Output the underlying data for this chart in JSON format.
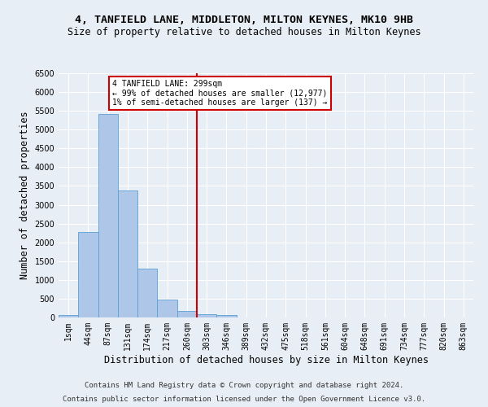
{
  "title": "4, TANFIELD LANE, MIDDLETON, MILTON KEYNES, MK10 9HB",
  "subtitle": "Size of property relative to detached houses in Milton Keynes",
  "xlabel": "Distribution of detached houses by size in Milton Keynes",
  "ylabel": "Number of detached properties",
  "footer_line1": "Contains HM Land Registry data © Crown copyright and database right 2024.",
  "footer_line2": "Contains public sector information licensed under the Open Government Licence v3.0.",
  "categories": [
    "1sqm",
    "44sqm",
    "87sqm",
    "131sqm",
    "174sqm",
    "217sqm",
    "260sqm",
    "303sqm",
    "346sqm",
    "389sqm",
    "432sqm",
    "475sqm",
    "518sqm",
    "561sqm",
    "604sqm",
    "648sqm",
    "691sqm",
    "734sqm",
    "777sqm",
    "820sqm",
    "863sqm"
  ],
  "values": [
    75,
    2280,
    5420,
    3380,
    1310,
    480,
    165,
    85,
    55,
    0,
    0,
    0,
    0,
    0,
    0,
    0,
    0,
    0,
    0,
    0,
    0
  ],
  "bar_color": "#aec6e8",
  "bar_edge_color": "#5a9fd4",
  "vline_x": 6.5,
  "vline_color": "#cc0000",
  "vline_label": "4 TANFIELD LANE: 299sqm",
  "annotation_line2": "← 99% of detached houses are smaller (12,977)",
  "annotation_line3": "1% of semi-detached houses are larger (137) →",
  "annotation_box_color": "#cc0000",
  "annotation_bg": "#ffffff",
  "ylim": [
    0,
    6500
  ],
  "yticks": [
    0,
    500,
    1000,
    1500,
    2000,
    2500,
    3000,
    3500,
    4000,
    4500,
    5000,
    5500,
    6000,
    6500
  ],
  "background_color": "#e8eef5",
  "plot_bg_color": "#e8eef5",
  "grid_color": "#ffffff",
  "title_fontsize": 9.5,
  "subtitle_fontsize": 8.5,
  "axis_label_fontsize": 8.5,
  "tick_fontsize": 7,
  "footer_fontsize": 6.5,
  "annotation_fontsize": 7
}
